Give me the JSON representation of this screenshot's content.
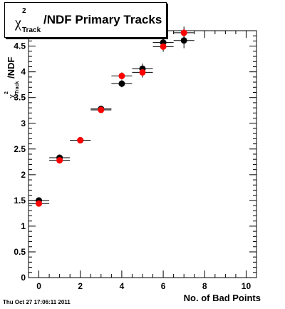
{
  "title": {
    "symbol": "χ",
    "superscript": "2",
    "subscript": "Track",
    "text": "/NDF Primary Tracks"
  },
  "footer": "Thu Oct 27 17:06:11 2011",
  "chart_data": {
    "type": "scatter",
    "xlabel": "No. of Bad Points",
    "ylabel": {
      "symbol": "χ",
      "superscript": "2",
      "subscript": "Track",
      "text": "/NDF"
    },
    "xlim": [
      -0.5,
      10.5
    ],
    "ylim": [
      0,
      4.8
    ],
    "x_ticks": [
      0,
      2,
      4,
      6,
      8,
      10
    ],
    "y_ticks": [
      0,
      0.5,
      1,
      1.5,
      2,
      2.5,
      3,
      3.5,
      4,
      4.5
    ],
    "y_tick_labels": [
      "0",
      "0.5",
      "1",
      "1.5",
      "2",
      "2.5",
      "3",
      "3.5",
      "4",
      "4.5"
    ],
    "grid": false,
    "series": [
      {
        "color": "#000000",
        "x": [
          0,
          1,
          2,
          3,
          4,
          5,
          6,
          7
        ],
        "y": [
          1.5,
          2.33,
          2.67,
          3.28,
          3.77,
          4.06,
          4.57,
          4.61
        ],
        "yerr": [
          0.02,
          0.02,
          0.02,
          0.04,
          0.07,
          0.1,
          0.1,
          0.15
        ],
        "xerr": [
          0.5,
          0.5,
          0.5,
          0.5,
          0.5,
          0.5,
          0.5,
          0.5
        ]
      },
      {
        "color": "#ff0000",
        "x": [
          0,
          1,
          2,
          3,
          4,
          5,
          6,
          7
        ],
        "y": [
          1.44,
          2.28,
          2.67,
          3.26,
          3.92,
          3.99,
          4.49,
          4.76
        ],
        "yerr": [
          0.02,
          0.02,
          0.02,
          0.04,
          0.07,
          0.1,
          0.1,
          0.12
        ],
        "xerr": [
          0.5,
          0.5,
          0.5,
          0.5,
          0.5,
          0.5,
          0.5,
          0.5
        ]
      }
    ]
  }
}
